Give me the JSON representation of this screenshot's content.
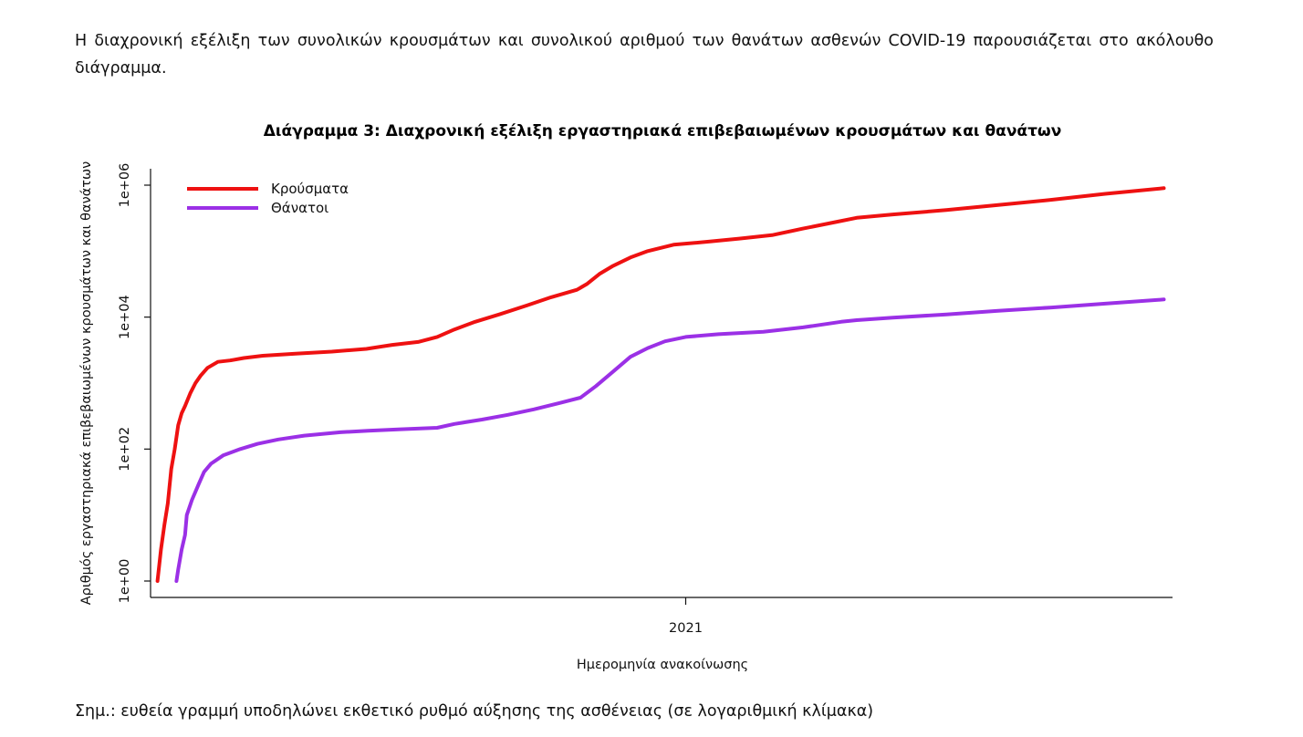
{
  "intro_text": "Η διαχρονική εξέλιξη των συνολικών κρουσμάτων και συνολικού αριθμού των θανάτων ασθενών COVID-19 παρουσιάζεται στο ακόλουθο διάγραμμα.",
  "note_text": "Σημ.: ευθεία γραμμή υποδηλώνει εκθετικό ρυθμό αύξησης της ασθένειας (σε λογαριθμική κλίμακα)",
  "colors": {
    "cases": "#ee1111",
    "deaths": "#9b30e6"
  },
  "chart_data": {
    "type": "line",
    "title": "Διάγραμμα 3: Διαχρονική εξέλιξη εργαστηριακά επιβεβαιωμένων κρουσμάτων και θανάτων",
    "xlabel": "Ημερομηνία ανακοίνωσης",
    "ylabel": "Αριθμός εργαστηριακά επιβεβαιωμένων κρουσμάτων και θανάτων",
    "y_scale": "log10",
    "ylim": [
      1,
      1000000
    ],
    "xlim": [
      "2020-02-26",
      "2021-10-10"
    ],
    "x_ticks": [
      {
        "date": "2021-01-01",
        "label": "2021"
      }
    ],
    "y_ticks": [
      {
        "value": 1,
        "label": "1e+00"
      },
      {
        "value": 100,
        "label": "1e+02"
      },
      {
        "value": 10000,
        "label": "1e+04"
      },
      {
        "value": 1000000,
        "label": "1e+06"
      }
    ],
    "legend_position": "top-left",
    "grid": false,
    "series": [
      {
        "name": "Κρούσματα",
        "color": "#ee1111",
        "points": [
          [
            "2020-03-01",
            1
          ],
          [
            "2020-03-03",
            3
          ],
          [
            "2020-03-05",
            7
          ],
          [
            "2020-03-07",
            15
          ],
          [
            "2020-03-09",
            50
          ],
          [
            "2020-03-11",
            100
          ],
          [
            "2020-03-13",
            230
          ],
          [
            "2020-03-15",
            350
          ],
          [
            "2020-03-17",
            450
          ],
          [
            "2020-03-20",
            700
          ],
          [
            "2020-03-23",
            1000
          ],
          [
            "2020-03-26",
            1300
          ],
          [
            "2020-03-30",
            1700
          ],
          [
            "2020-04-05",
            2100
          ],
          [
            "2020-04-12",
            2200
          ],
          [
            "2020-04-20",
            2400
          ],
          [
            "2020-05-01",
            2600
          ],
          [
            "2020-05-20",
            2800
          ],
          [
            "2020-06-10",
            3000
          ],
          [
            "2020-06-30",
            3300
          ],
          [
            "2020-07-15",
            3800
          ],
          [
            "2020-07-30",
            4200
          ],
          [
            "2020-08-10",
            5000
          ],
          [
            "2020-08-20",
            6500
          ],
          [
            "2020-09-01",
            8500
          ],
          [
            "2020-09-15",
            11000
          ],
          [
            "2020-10-01",
            15000
          ],
          [
            "2020-10-15",
            20000
          ],
          [
            "2020-10-30",
            26000
          ],
          [
            "2020-11-05",
            32000
          ],
          [
            "2020-11-12",
            45000
          ],
          [
            "2020-11-20",
            60000
          ],
          [
            "2020-11-30",
            80000
          ],
          [
            "2020-12-10",
            100000
          ],
          [
            "2020-12-25",
            125000
          ],
          [
            "2021-01-15",
            140000
          ],
          [
            "2021-02-01",
            155000
          ],
          [
            "2021-02-20",
            175000
          ],
          [
            "2021-03-10",
            220000
          ],
          [
            "2021-03-30",
            280000
          ],
          [
            "2021-04-10",
            320000
          ],
          [
            "2021-05-01",
            360000
          ],
          [
            "2021-06-01",
            420000
          ],
          [
            "2021-07-01",
            500000
          ],
          [
            "2021-08-01",
            600000
          ],
          [
            "2021-09-01",
            740000
          ],
          [
            "2021-10-05",
            900000
          ]
        ]
      },
      {
        "name": "Θάνατοι",
        "color": "#9b30e6",
        "points": [
          [
            "2020-03-12",
            1
          ],
          [
            "2020-03-13",
            1.5
          ],
          [
            "2020-03-15",
            3
          ],
          [
            "2020-03-17",
            5
          ],
          [
            "2020-03-18",
            10
          ],
          [
            "2020-03-21",
            17
          ],
          [
            "2020-03-25",
            30
          ],
          [
            "2020-03-28",
            45
          ],
          [
            "2020-04-01",
            60
          ],
          [
            "2020-04-08",
            80
          ],
          [
            "2020-04-18",
            100
          ],
          [
            "2020-04-28",
            120
          ],
          [
            "2020-05-10",
            140
          ],
          [
            "2020-05-25",
            160
          ],
          [
            "2020-06-15",
            180
          ],
          [
            "2020-07-01",
            190
          ],
          [
            "2020-07-20",
            200
          ],
          [
            "2020-08-10",
            210
          ],
          [
            "2020-08-20",
            240
          ],
          [
            "2020-09-05",
            280
          ],
          [
            "2020-09-20",
            330
          ],
          [
            "2020-10-05",
            400
          ],
          [
            "2020-10-20",
            500
          ],
          [
            "2020-11-01",
            600
          ],
          [
            "2020-11-10",
            900
          ],
          [
            "2020-11-20",
            1500
          ],
          [
            "2020-11-30",
            2500
          ],
          [
            "2020-12-10",
            3400
          ],
          [
            "2020-12-20",
            4300
          ],
          [
            "2021-01-01",
            5000
          ],
          [
            "2021-01-20",
            5500
          ],
          [
            "2021-02-15",
            6000
          ],
          [
            "2021-03-10",
            7000
          ],
          [
            "2021-04-01",
            8500
          ],
          [
            "2021-04-10",
            9000
          ],
          [
            "2021-05-01",
            9800
          ],
          [
            "2021-06-01",
            11000
          ],
          [
            "2021-07-01",
            12500
          ],
          [
            "2021-08-01",
            14000
          ],
          [
            "2021-09-01",
            16000
          ],
          [
            "2021-10-05",
            18500
          ]
        ]
      }
    ]
  }
}
